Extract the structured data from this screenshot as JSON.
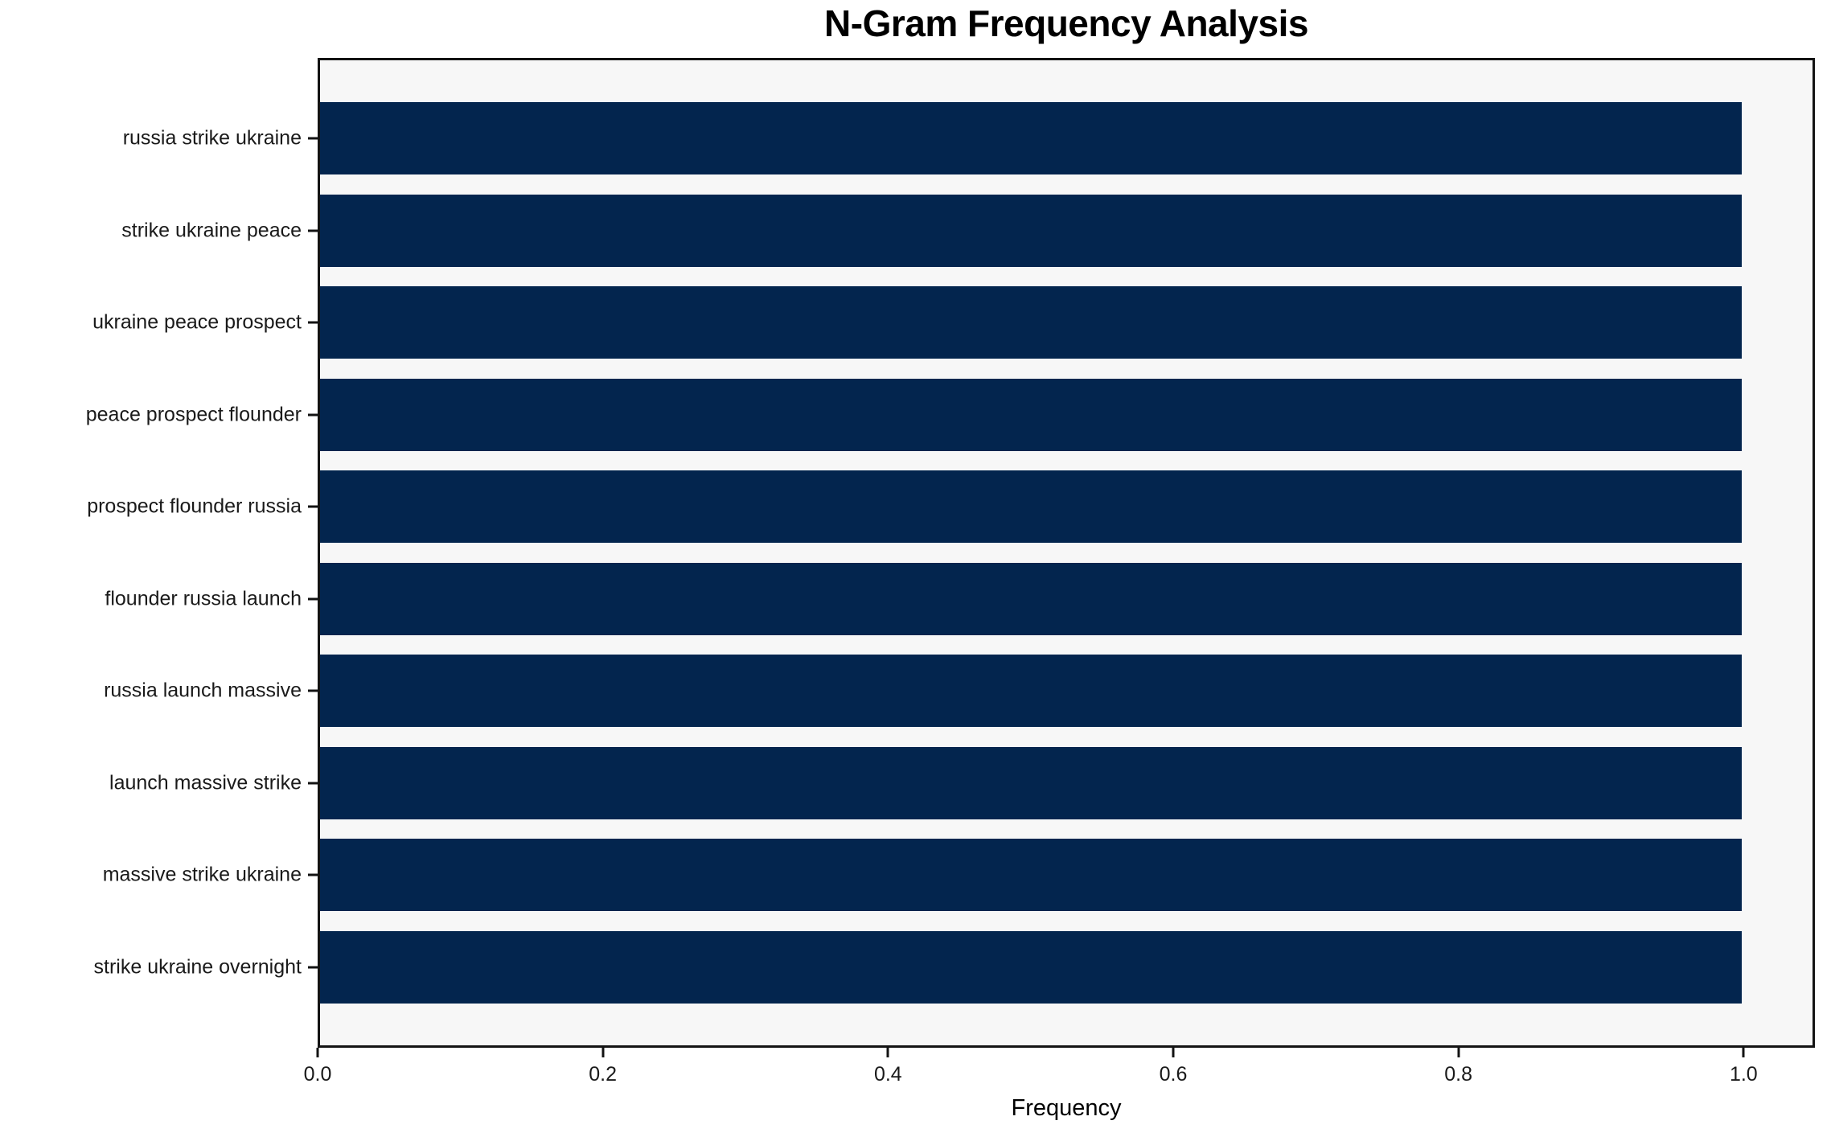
{
  "chart_data": {
    "type": "bar",
    "orientation": "horizontal",
    "title": "N-Gram Frequency Analysis",
    "xlabel": "Frequency",
    "ylabel": "",
    "categories": [
      "russia strike ukraine",
      "strike ukraine peace",
      "ukraine peace prospect",
      "peace prospect flounder",
      "prospect flounder russia",
      "flounder russia launch",
      "russia launch massive",
      "launch massive strike",
      "massive strike ukraine",
      "strike ukraine overnight"
    ],
    "values": [
      1.0,
      1.0,
      1.0,
      1.0,
      1.0,
      1.0,
      1.0,
      1.0,
      1.0,
      1.0
    ],
    "xlim": [
      0,
      1.05
    ],
    "xticks": [
      0.0,
      0.2,
      0.4,
      0.6,
      0.8,
      1.0
    ],
    "xtick_labels": [
      "0.0",
      "0.2",
      "0.4",
      "0.6",
      "0.8",
      "1.0"
    ],
    "grid": false,
    "legend": null,
    "colors": {
      "bar": "#03254e",
      "plot_background": "#f7f7f7",
      "figure_background": "#ffffff",
      "spine": "#131313",
      "text": "#000000"
    }
  }
}
